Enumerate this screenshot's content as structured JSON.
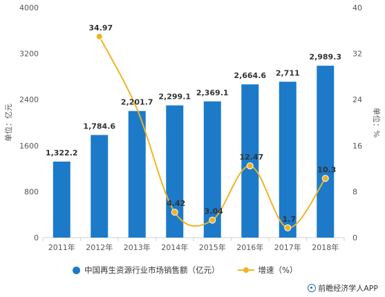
{
  "chart_data": {
    "type": "bar",
    "categories": [
      "2011年",
      "2012年",
      "2013年",
      "2014年",
      "2015年",
      "2016年",
      "2017年",
      "2018年"
    ],
    "series": [
      {
        "name": "中国再生资源行业市场销售额（亿元）",
        "type": "bar",
        "axis": "left",
        "values": [
          1322.2,
          1784.6,
          2201.7,
          2299.1,
          2369.1,
          2664.6,
          2711,
          2989.3
        ],
        "labels": [
          "1,322.2",
          "1,784.6",
          "2,201.7",
          "2,299.1",
          "2,369.1",
          "2,664.6",
          "2,711",
          "2,989.3"
        ],
        "color": "#1c7ac9"
      },
      {
        "name": "增速（%）",
        "type": "line",
        "axis": "right",
        "smooth": true,
        "values": [
          null,
          34.97,
          22.37,
          4.42,
          3.04,
          12.47,
          1.7,
          10.3
        ],
        "labels": [
          null,
          "34.97",
          null,
          "4.42",
          "3.04",
          "12.47",
          "1.7",
          "10.3"
        ],
        "color": "#f0b323"
      }
    ],
    "ylabel": "单位：亿元",
    "y2label": "单位：%",
    "ylim": [
      0,
      4000
    ],
    "y2lim": [
      0,
      40
    ],
    "yticks": [
      "0",
      "800",
      "1600",
      "2400",
      "3200",
      "4000"
    ],
    "y2ticks": [
      "0",
      "8",
      "16",
      "24",
      "32",
      "40"
    ],
    "grid": false,
    "legend_position": "bottom"
  },
  "source": "前瞻经济学人APP"
}
